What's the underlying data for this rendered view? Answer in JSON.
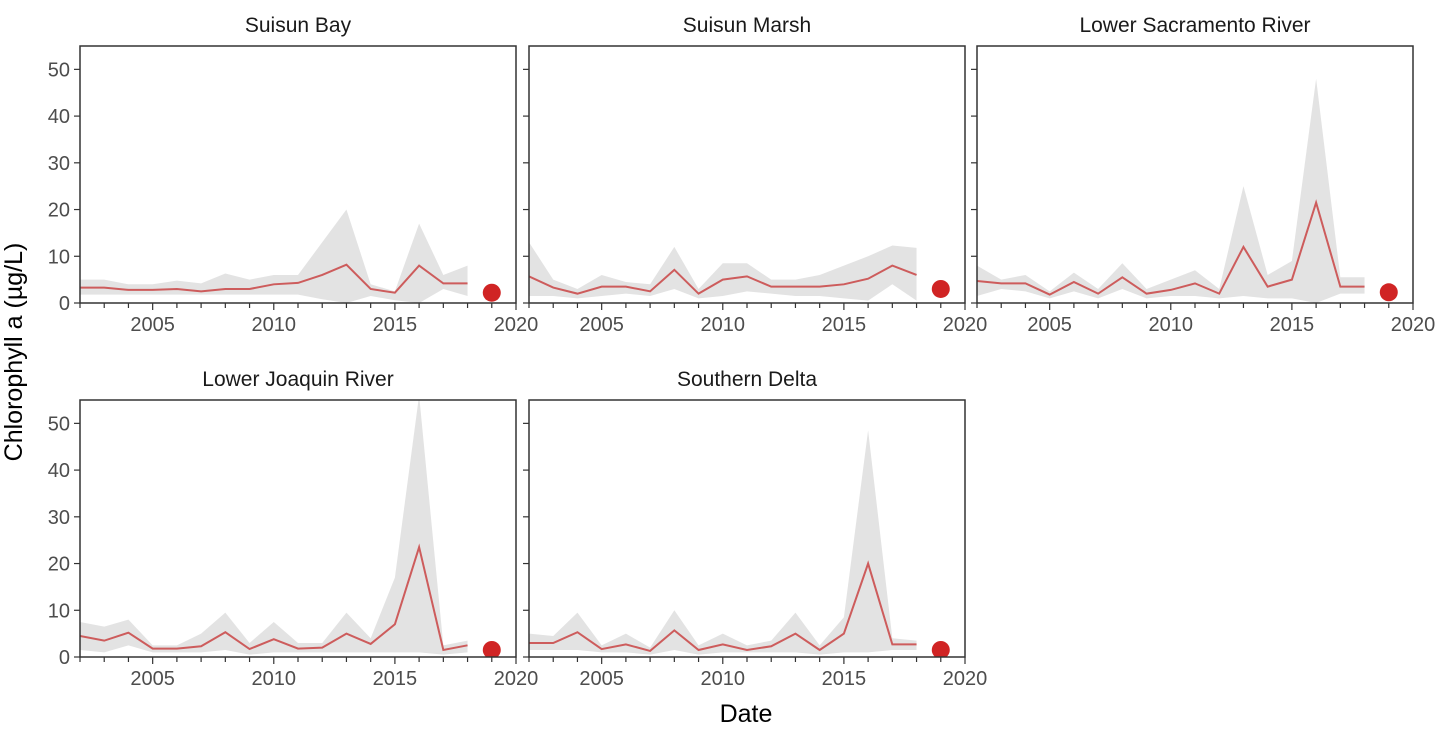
{
  "chart_data": {
    "type": "line",
    "xlabel": "Date",
    "ylabel": "Chlorophyll a (µg/L)",
    "xlim": [
      2002,
      2020
    ],
    "ylim": [
      0,
      55
    ],
    "x_ticks": [
      2005,
      2010,
      2015,
      2020
    ],
    "y_ticks": [
      0,
      10,
      20,
      30,
      40,
      50
    ],
    "colors": {
      "line": "#CD5C5C",
      "band": "#E3E3E3",
      "point": "#D02424",
      "panel_border": "#333333"
    },
    "panels": [
      {
        "title": "Suisun Bay",
        "x": [
          2002,
          2003,
          2004,
          2005,
          2006,
          2007,
          2008,
          2009,
          2010,
          2011,
          2012,
          2013,
          2014,
          2015,
          2016,
          2017,
          2018,
          2019
        ],
        "mean": [
          3.3,
          3.3,
          2.8,
          2.8,
          3.0,
          2.5,
          3.0,
          3.0,
          4.0,
          4.3,
          6.0,
          8.2,
          3.0,
          2.2,
          8.0,
          4.2,
          4.2,
          null
        ],
        "upper": [
          5.0,
          5.0,
          4.0,
          4.0,
          4.8,
          4.2,
          6.3,
          5.0,
          6.0,
          6.0,
          13.0,
          20.0,
          4.0,
          2.5,
          17.0,
          6.0,
          8.0,
          null
        ],
        "lower": [
          1.8,
          1.8,
          1.8,
          1.8,
          1.8,
          1.8,
          1.8,
          1.8,
          1.8,
          1.8,
          0.8,
          0.0,
          1.5,
          0.6,
          0.0,
          3.0,
          1.5,
          null
        ],
        "current": {
          "x": 2019,
          "y": 2.2
        }
      },
      {
        "title": "Suisun Marsh",
        "x": [
          2002,
          2003,
          2004,
          2005,
          2006,
          2007,
          2008,
          2009,
          2010,
          2011,
          2012,
          2013,
          2014,
          2015,
          2016,
          2017,
          2018,
          2019
        ],
        "mean": [
          5.7,
          3.3,
          2.0,
          3.5,
          3.5,
          2.5,
          7.1,
          2.0,
          5.0,
          5.7,
          3.5,
          3.5,
          3.5,
          4.0,
          5.2,
          8.0,
          6.0,
          null
        ],
        "upper": [
          13.0,
          5.0,
          3.0,
          6.0,
          4.5,
          4.0,
          12.0,
          3.0,
          8.5,
          8.5,
          5.0,
          5.0,
          6.0,
          8.0,
          10.0,
          12.3,
          11.8,
          null
        ],
        "lower": [
          1.5,
          1.5,
          1.0,
          1.5,
          2.0,
          1.5,
          3.0,
          1.0,
          1.5,
          2.5,
          2.0,
          1.5,
          1.5,
          1.0,
          0.5,
          4.0,
          0.5,
          null
        ],
        "current": {
          "x": 2019,
          "y": 3.0
        }
      },
      {
        "title": "Lower Sacramento River",
        "x": [
          2002,
          2003,
          2004,
          2005,
          2006,
          2007,
          2008,
          2009,
          2010,
          2011,
          2012,
          2013,
          2014,
          2015,
          2016,
          2017,
          2018,
          2019
        ],
        "mean": [
          4.7,
          4.2,
          4.2,
          1.8,
          4.5,
          2.0,
          5.5,
          2.0,
          2.8,
          4.2,
          2.0,
          12.0,
          3.5,
          5.0,
          21.5,
          3.5,
          3.5,
          null
        ],
        "upper": [
          8.0,
          5.0,
          6.0,
          2.5,
          6.5,
          3.0,
          8.5,
          3.0,
          5.0,
          7.0,
          3.0,
          25.0,
          6.0,
          9.0,
          48.0,
          5.5,
          5.5,
          null
        ],
        "lower": [
          1.5,
          3.0,
          2.5,
          1.0,
          2.5,
          1.0,
          3.0,
          1.0,
          1.5,
          1.5,
          1.0,
          1.5,
          1.0,
          1.0,
          0.0,
          2.0,
          2.0,
          null
        ],
        "current": {
          "x": 2019,
          "y": 2.3
        }
      },
      {
        "title": "Lower Joaquin River",
        "x": [
          2002,
          2003,
          2004,
          2005,
          2006,
          2007,
          2008,
          2009,
          2010,
          2011,
          2012,
          2013,
          2014,
          2015,
          2016,
          2017,
          2018,
          2019
        ],
        "mean": [
          4.5,
          3.5,
          5.2,
          1.8,
          1.8,
          2.3,
          5.3,
          1.7,
          3.8,
          1.8,
          2.0,
          5.0,
          2.8,
          7.0,
          23.5,
          1.5,
          2.5,
          null
        ],
        "upper": [
          7.5,
          6.5,
          8.0,
          2.5,
          2.5,
          5.0,
          9.5,
          3.0,
          7.5,
          3.0,
          3.0,
          9.5,
          4.0,
          17.0,
          56.0,
          2.5,
          3.5,
          null
        ],
        "lower": [
          1.5,
          1.0,
          2.5,
          1.0,
          1.0,
          1.0,
          1.5,
          0.5,
          1.0,
          1.0,
          1.0,
          1.0,
          1.0,
          1.0,
          1.0,
          0.5,
          1.0,
          null
        ],
        "current": {
          "x": 2019,
          "y": 1.5
        }
      },
      {
        "title": "Southern Delta",
        "x": [
          2002,
          2003,
          2004,
          2005,
          2006,
          2007,
          2008,
          2009,
          2010,
          2011,
          2012,
          2013,
          2014,
          2015,
          2016,
          2017,
          2018,
          2019
        ],
        "mean": [
          3.0,
          3.0,
          5.3,
          1.7,
          2.7,
          1.3,
          5.7,
          1.5,
          2.7,
          1.5,
          2.3,
          5.0,
          1.5,
          5.0,
          20.0,
          2.7,
          2.7,
          null
        ],
        "upper": [
          5.0,
          4.5,
          9.5,
          2.5,
          5.0,
          2.0,
          10.0,
          2.5,
          5.0,
          2.5,
          3.5,
          9.5,
          2.5,
          8.5,
          48.5,
          4.0,
          3.5,
          null
        ],
        "lower": [
          1.5,
          1.5,
          1.5,
          1.0,
          1.0,
          0.5,
          1.5,
          0.5,
          1.0,
          1.0,
          1.0,
          1.0,
          0.5,
          1.0,
          1.0,
          1.5,
          1.5,
          null
        ],
        "current": {
          "x": 2019,
          "y": 1.5
        }
      }
    ]
  }
}
